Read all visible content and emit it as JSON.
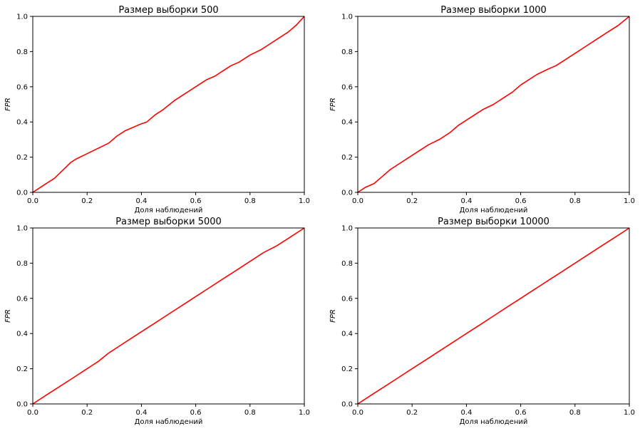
{
  "colors": {
    "line": "#ff0000",
    "axes": "#000000",
    "background": "#ffffff"
  },
  "chart_data": [
    {
      "type": "line",
      "title": "Размер выборки 500",
      "xlabel": "Доля наблюдений",
      "ylabel": "FPR",
      "xlim": [
        0,
        1
      ],
      "ylim": [
        0,
        1
      ],
      "xticks": [
        "0.0",
        "0.2",
        "0.4",
        "0.6",
        "0.8",
        "1.0"
      ],
      "yticks": [
        "0.0",
        "0.2",
        "0.4",
        "0.6",
        "0.8",
        "1.0"
      ],
      "grid": false,
      "series": [
        {
          "name": "FPR",
          "x": [
            0.0,
            0.03,
            0.05,
            0.08,
            0.1,
            0.12,
            0.14,
            0.16,
            0.2,
            0.24,
            0.28,
            0.31,
            0.34,
            0.37,
            0.4,
            0.42,
            0.45,
            0.48,
            0.52,
            0.55,
            0.58,
            0.61,
            0.64,
            0.67,
            0.7,
            0.73,
            0.76,
            0.8,
            0.84,
            0.87,
            0.91,
            0.94,
            0.97,
            1.0
          ],
          "y": [
            0.0,
            0.03,
            0.05,
            0.08,
            0.11,
            0.14,
            0.17,
            0.19,
            0.22,
            0.25,
            0.28,
            0.32,
            0.35,
            0.37,
            0.39,
            0.4,
            0.44,
            0.47,
            0.52,
            0.55,
            0.58,
            0.61,
            0.64,
            0.66,
            0.69,
            0.72,
            0.74,
            0.78,
            0.81,
            0.84,
            0.88,
            0.91,
            0.95,
            1.0
          ]
        }
      ]
    },
    {
      "type": "line",
      "title": "Размер выборки 1000",
      "xlabel": "Доля наблюдений",
      "ylabel": "FPR",
      "xlim": [
        0,
        1
      ],
      "ylim": [
        0,
        1
      ],
      "xticks": [
        "0.0",
        "0.2",
        "0.4",
        "0.6",
        "0.8",
        "1.0"
      ],
      "yticks": [
        "0.0",
        "0.2",
        "0.4",
        "0.6",
        "0.8",
        "1.0"
      ],
      "grid": false,
      "series": [
        {
          "name": "FPR",
          "x": [
            0.0,
            0.03,
            0.06,
            0.09,
            0.12,
            0.15,
            0.18,
            0.22,
            0.26,
            0.3,
            0.34,
            0.37,
            0.4,
            0.43,
            0.46,
            0.5,
            0.54,
            0.57,
            0.6,
            0.63,
            0.66,
            0.7,
            0.73,
            0.76,
            0.8,
            0.84,
            0.88,
            0.92,
            0.96,
            1.0
          ],
          "y": [
            0.0,
            0.03,
            0.05,
            0.09,
            0.13,
            0.16,
            0.19,
            0.23,
            0.27,
            0.3,
            0.34,
            0.38,
            0.41,
            0.44,
            0.47,
            0.5,
            0.54,
            0.57,
            0.61,
            0.64,
            0.67,
            0.7,
            0.72,
            0.75,
            0.79,
            0.83,
            0.87,
            0.91,
            0.95,
            1.0
          ]
        }
      ]
    },
    {
      "type": "line",
      "title": "Размер выборки 5000",
      "xlabel": "Доля наблюдений",
      "ylabel": "FPR",
      "xlim": [
        0,
        1
      ],
      "ylim": [
        0,
        1
      ],
      "xticks": [
        "0.0",
        "0.2",
        "0.4",
        "0.6",
        "0.8",
        "1.0"
      ],
      "yticks": [
        "0.0",
        "0.2",
        "0.4",
        "0.6",
        "0.8",
        "1.0"
      ],
      "grid": false,
      "series": [
        {
          "name": "FPR",
          "x": [
            0.0,
            0.05,
            0.1,
            0.15,
            0.2,
            0.24,
            0.28,
            0.32,
            0.36,
            0.4,
            0.45,
            0.5,
            0.55,
            0.6,
            0.65,
            0.7,
            0.75,
            0.8,
            0.85,
            0.9,
            0.95,
            1.0
          ],
          "y": [
            0.0,
            0.05,
            0.1,
            0.15,
            0.2,
            0.24,
            0.29,
            0.33,
            0.37,
            0.41,
            0.46,
            0.51,
            0.56,
            0.61,
            0.66,
            0.71,
            0.76,
            0.81,
            0.86,
            0.9,
            0.95,
            1.0
          ]
        }
      ]
    },
    {
      "type": "line",
      "title": "Размер выборки 10000",
      "xlabel": "Доля наблюдений",
      "ylabel": "FPR",
      "xlim": [
        0,
        1
      ],
      "ylim": [
        0,
        1
      ],
      "xticks": [
        "0.0",
        "0.2",
        "0.4",
        "0.6",
        "0.8",
        "1.0"
      ],
      "yticks": [
        "0.0",
        "0.2",
        "0.4",
        "0.6",
        "0.8",
        "1.0"
      ],
      "grid": false,
      "series": [
        {
          "name": "FPR",
          "x": [
            0.0,
            0.05,
            0.1,
            0.15,
            0.2,
            0.25,
            0.3,
            0.35,
            0.4,
            0.45,
            0.5,
            0.55,
            0.6,
            0.65,
            0.7,
            0.75,
            0.8,
            0.85,
            0.9,
            0.95,
            1.0
          ],
          "y": [
            0.0,
            0.05,
            0.1,
            0.15,
            0.2,
            0.25,
            0.3,
            0.35,
            0.4,
            0.45,
            0.5,
            0.55,
            0.6,
            0.65,
            0.7,
            0.75,
            0.8,
            0.85,
            0.9,
            0.95,
            1.0
          ]
        }
      ]
    }
  ]
}
